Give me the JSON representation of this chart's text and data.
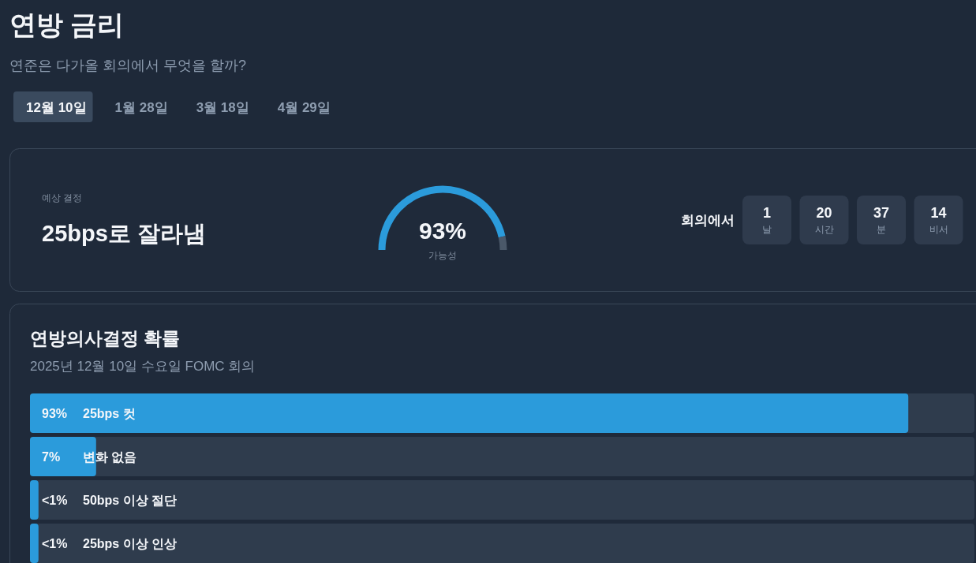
{
  "chart_data": [
    {
      "type": "other",
      "title": "연방 금리",
      "subtitle": "연준은 다가올 회의에서 무엇을 할까?",
      "categories": [
        "12월 10일",
        "1월 28일",
        "3월 18일",
        "4월 29일"
      ],
      "colors": [
        "#3a4a5e",
        null,
        null,
        null
      ]
    },
    {
      "type": "other",
      "title": "예상 결정",
      "subtitle": "25bps로 잘라냄"
    },
    {
      "type": "donut",
      "categories": [
        null,
        null
      ],
      "values": [
        93,
        7
      ],
      "colors": [
        "#2b9bdb",
        "#4a5869"
      ],
      "value_labels": [
        "93%",
        null
      ],
      "annotations": [
        "가능성"
      ]
    },
    {
      "type": "other",
      "title": "회의에서",
      "categories": [
        "날",
        "시간",
        "분",
        "비서"
      ],
      "values": [
        1,
        20,
        37,
        14
      ],
      "data_labels": true
    },
    {
      "type": "bar",
      "orientation": "horizontal",
      "title": "연방의사결정 확률",
      "subtitle": "2025년 12월 10일 수요일 FOMC 회의",
      "categories": [
        "25bps 컷",
        "변화 없음",
        "50bps 이상 절단",
        "25bps 이상 인상"
      ],
      "values": [
        93,
        7,
        0.9,
        0.9
      ],
      "value_labels": [
        "93%",
        "7%",
        "<1%",
        "<1%"
      ],
      "color": "#2b9bdb",
      "xlim": [
        0,
        100
      ],
      "tick_labels": false
    }
  ]
}
